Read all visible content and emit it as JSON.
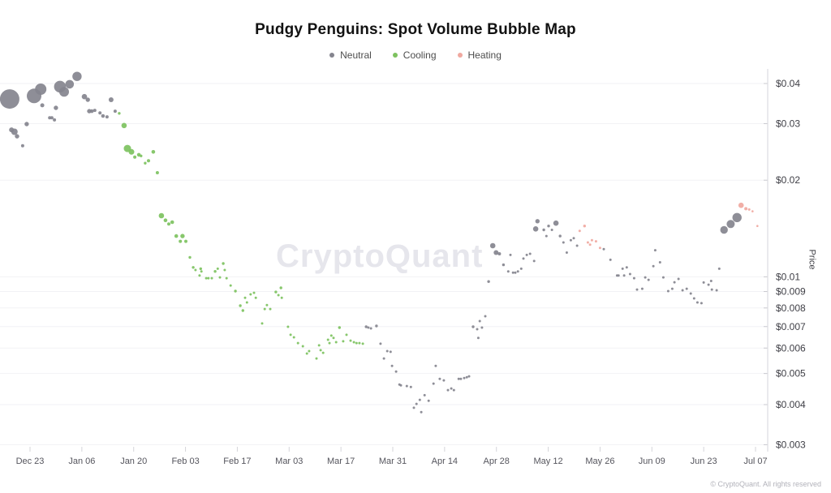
{
  "title": "Pudgy Penguins: Spot Volume Bubble Map",
  "watermark": "CryptoQuant",
  "footer": "© CryptoQuant. All rights reserved",
  "legend": [
    {
      "label": "Neutral",
      "color": "#84848e"
    },
    {
      "label": "Cooling",
      "color": "#7dc25f"
    },
    {
      "label": "Heating",
      "color": "#f0a89f"
    }
  ],
  "y_axis": {
    "label": "Price",
    "scale": "log",
    "ticks": [
      "$0.04",
      "$0.03",
      "$0.02",
      "$0.01",
      "$0.009",
      "$0.008",
      "$0.007",
      "$0.006",
      "$0.005",
      "$0.004",
      "$0.003"
    ],
    "tick_values": [
      0.04,
      0.03,
      0.02,
      0.01,
      0.009,
      0.008,
      0.007,
      0.006,
      0.005,
      0.004,
      0.003
    ]
  },
  "x_axis": {
    "ticks": [
      "Dec 23",
      "Jan 06",
      "Jan 20",
      "Feb 03",
      "Feb 17",
      "Mar 03",
      "Mar 17",
      "Mar 31",
      "Apr 14",
      "Apr 28",
      "May 12",
      "May 26",
      "Jun 09",
      "Jun 23",
      "Jul 07"
    ],
    "tick_interval_days": 14,
    "start_label": "Dec 23"
  },
  "chart_data": {
    "type": "scatter",
    "subtype": "bubble",
    "title": "Pudgy Penguins: Spot Volume Bubble Map",
    "xlabel": "",
    "ylabel": "Price",
    "y_scale": "log",
    "ylim": [
      0.003,
      0.045
    ],
    "x_unit": "days since Dec 23",
    "x_range_days": [
      -8,
      199
    ],
    "point_format": [
      "day_offset",
      "price_usd",
      "bubble_radius"
    ],
    "series": [
      {
        "name": "Neutral",
        "color": "#84848e",
        "points": [
          [
            -5.5,
            0.0358,
            12
          ],
          [
            -5.0,
            0.0287,
            3
          ],
          [
            -4.2,
            0.0283,
            4
          ],
          [
            -3.5,
            0.0274,
            2.7
          ],
          [
            -2.0,
            0.0256,
            2
          ],
          [
            -0.9,
            0.0299,
            2.7
          ],
          [
            1.1,
            0.0366,
            9
          ],
          [
            2.9,
            0.0384,
            7
          ],
          [
            3.3,
            0.0342,
            2.5
          ],
          [
            5.3,
            0.0313,
            2
          ],
          [
            5.9,
            0.0313,
            2
          ],
          [
            6.6,
            0.0308,
            2
          ],
          [
            7.0,
            0.0336,
            2.7
          ],
          [
            8.1,
            0.0391,
            7.3
          ],
          [
            9.2,
            0.0377,
            6
          ],
          [
            10.7,
            0.0398,
            5.3
          ],
          [
            12.7,
            0.0421,
            5.7
          ],
          [
            14.7,
            0.0364,
            3.3
          ],
          [
            15.6,
            0.0356,
            2.7
          ],
          [
            16.0,
            0.0328,
            2.7
          ],
          [
            16.7,
            0.0328,
            2.3
          ],
          [
            17.5,
            0.033,
            2
          ],
          [
            18.9,
            0.0324,
            2
          ],
          [
            19.7,
            0.0317,
            2.3
          ],
          [
            20.8,
            0.0315,
            2
          ],
          [
            21.9,
            0.0356,
            3
          ],
          [
            23.0,
            0.0328,
            2
          ],
          [
            90.8,
            0.00699,
            1.7
          ],
          [
            91.4,
            0.00695,
            1.5
          ],
          [
            92.1,
            0.00691,
            1.5
          ],
          [
            93.6,
            0.00703,
            1.7
          ],
          [
            94.7,
            0.00619,
            1.5
          ],
          [
            95.6,
            0.00557,
            1.5
          ],
          [
            96.5,
            0.00587,
            1.5
          ],
          [
            97.4,
            0.00584,
            1.5
          ],
          [
            97.8,
            0.00528,
            1.5
          ],
          [
            98.9,
            0.00507,
            1.5
          ],
          [
            99.8,
            0.00462,
            1.5
          ],
          [
            100.2,
            0.00459,
            1.5
          ],
          [
            101.8,
            0.00457,
            1.5
          ],
          [
            102.9,
            0.00454,
            1.5
          ],
          [
            103.7,
            0.00391,
            1.5
          ],
          [
            104.4,
            0.00402,
            1.5
          ],
          [
            105.3,
            0.00414,
            1.5
          ],
          [
            105.7,
            0.00379,
            1.5
          ],
          [
            106.6,
            0.00428,
            1.5
          ],
          [
            107.7,
            0.00411,
            1.5
          ],
          [
            109.0,
            0.00465,
            1.5
          ],
          [
            109.6,
            0.00528,
            1.5
          ],
          [
            110.7,
            0.00481,
            1.5
          ],
          [
            111.8,
            0.00476,
            1.5
          ],
          [
            112.9,
            0.00444,
            1.5
          ],
          [
            113.8,
            0.00449,
            1.5
          ],
          [
            114.5,
            0.00444,
            1.5
          ],
          [
            115.8,
            0.00481,
            1.5
          ],
          [
            116.4,
            0.00481,
            1.5
          ],
          [
            117.3,
            0.00484,
            1.5
          ],
          [
            118.0,
            0.00487,
            1.5
          ],
          [
            118.6,
            0.0049,
            1.5
          ],
          [
            119.7,
            0.00699,
            1.7
          ],
          [
            120.8,
            0.00687,
            1.5
          ],
          [
            121.1,
            0.00645,
            1.5
          ],
          [
            121.5,
            0.00728,
            1.5
          ],
          [
            122.1,
            0.00695,
            1.5
          ],
          [
            123.0,
            0.00754,
            1.5
          ],
          [
            123.9,
            0.00967,
            1.7
          ],
          [
            125.0,
            0.0125,
            3.3
          ],
          [
            125.9,
            0.0119,
            3
          ],
          [
            126.8,
            0.0118,
            2
          ],
          [
            127.9,
            0.0109,
            1.7
          ],
          [
            129.2,
            0.0104,
            1.5
          ],
          [
            129.8,
            0.0117,
            1.5
          ],
          [
            130.5,
            0.0103,
            1.5
          ],
          [
            131.1,
            0.0103,
            1.5
          ],
          [
            131.8,
            0.0104,
            1.5
          ],
          [
            132.7,
            0.0106,
            1.5
          ],
          [
            133.3,
            0.0114,
            1.5
          ],
          [
            134.2,
            0.0117,
            1.5
          ],
          [
            135.1,
            0.0118,
            1.5
          ],
          [
            136.2,
            0.0112,
            1.5
          ],
          [
            136.6,
            0.0141,
            3.3
          ],
          [
            137.1,
            0.0149,
            2.7
          ],
          [
            138.8,
            0.014,
            1.7
          ],
          [
            139.5,
            0.0134,
            1.5
          ],
          [
            140.1,
            0.0144,
            1.7
          ],
          [
            141.0,
            0.014,
            1.5
          ],
          [
            142.1,
            0.0147,
            3.3
          ],
          [
            143.2,
            0.0134,
            1.7
          ],
          [
            144.1,
            0.0128,
            1.5
          ],
          [
            145.0,
            0.0119,
            1.5
          ],
          [
            146.1,
            0.013,
            1.5
          ],
          [
            146.9,
            0.0132,
            1.5
          ],
          [
            147.8,
            0.0125,
            1.5
          ],
          [
            155.0,
            0.0122,
            1.5
          ],
          [
            156.8,
            0.0113,
            1.5
          ],
          [
            158.6,
            0.0101,
            1.5
          ],
          [
            159.0,
            0.0101,
            1.5
          ],
          [
            160.1,
            0.0106,
            1.5
          ],
          [
            160.5,
            0.0101,
            1.5
          ],
          [
            161.2,
            0.0107,
            1.5
          ],
          [
            162.1,
            0.0102,
            1.5
          ],
          [
            163.2,
            0.0099,
            1.5
          ],
          [
            164.0,
            0.00913,
            1.5
          ],
          [
            165.4,
            0.00918,
            1.5
          ],
          [
            166.2,
            0.00996,
            1.5
          ],
          [
            167.1,
            0.00979,
            1.5
          ],
          [
            168.4,
            0.0108,
            1.5
          ],
          [
            168.9,
            0.0121,
            1.5
          ],
          [
            170.2,
            0.0111,
            1.5
          ],
          [
            171.1,
            0.00996,
            1.5
          ],
          [
            172.4,
            0.00903,
            1.5
          ],
          [
            173.5,
            0.00918,
            1.5
          ],
          [
            174.1,
            0.00962,
            1.5
          ],
          [
            175.2,
            0.00985,
            1.5
          ],
          [
            176.3,
            0.00908,
            1.5
          ],
          [
            177.4,
            0.00918,
            1.5
          ],
          [
            178.5,
            0.00887,
            1.5
          ],
          [
            179.4,
            0.00857,
            1.5
          ],
          [
            180.3,
            0.00832,
            1.5
          ],
          [
            181.4,
            0.00828,
            1.5
          ],
          [
            182.0,
            0.0096,
            1.5
          ],
          [
            183.3,
            0.00945,
            1.5
          ],
          [
            184.0,
            0.00971,
            1.5
          ],
          [
            184.2,
            0.00913,
            1.5
          ],
          [
            185.5,
            0.00908,
            1.5
          ],
          [
            186.2,
            0.0106,
            1.5
          ],
          [
            187.5,
            0.014,
            4.7
          ],
          [
            189.3,
            0.0146,
            5
          ],
          [
            191.0,
            0.0153,
            5.7
          ]
        ]
      },
      {
        "name": "Cooling",
        "color": "#7dc25f",
        "points": [
          [
            24.1,
            0.0323,
            1.7
          ],
          [
            25.4,
            0.0296,
            3.3
          ],
          [
            26.3,
            0.0251,
            4.5
          ],
          [
            27.4,
            0.0245,
            3.5
          ],
          [
            28.3,
            0.0236,
            2
          ],
          [
            29.4,
            0.024,
            2.3
          ],
          [
            30.0,
            0.0238,
            1.7
          ],
          [
            31.1,
            0.0226,
            1.7
          ],
          [
            32.0,
            0.023,
            2
          ],
          [
            33.3,
            0.0245,
            2.3
          ],
          [
            34.4,
            0.0211,
            2
          ],
          [
            35.5,
            0.0155,
            3.3
          ],
          [
            36.6,
            0.015,
            2.3
          ],
          [
            37.5,
            0.0146,
            2
          ],
          [
            38.4,
            0.0148,
            2.3
          ],
          [
            39.5,
            0.0134,
            2.3
          ],
          [
            40.6,
            0.0129,
            2
          ],
          [
            41.2,
            0.0134,
            2.7
          ],
          [
            42.1,
            0.0129,
            2
          ],
          [
            43.2,
            0.0115,
            1.7
          ],
          [
            44.1,
            0.0107,
            1.7
          ],
          [
            44.7,
            0.0105,
            1.5
          ],
          [
            45.8,
            0.0101,
            1.5
          ],
          [
            46.1,
            0.0106,
            1.7
          ],
          [
            46.3,
            0.0104,
            1.5
          ],
          [
            47.6,
            0.0099,
            1.5
          ],
          [
            48.2,
            0.0099,
            1.5
          ],
          [
            49.1,
            0.0099,
            1.5
          ],
          [
            50.0,
            0.0104,
            1.7
          ],
          [
            50.7,
            0.0106,
            1.5
          ],
          [
            51.3,
            0.00996,
            1.5
          ],
          [
            52.2,
            0.011,
            1.7
          ],
          [
            52.6,
            0.0105,
            1.5
          ],
          [
            53.1,
            0.0099,
            1.5
          ],
          [
            54.2,
            0.0094,
            1.5
          ],
          [
            55.5,
            0.00903,
            1.7
          ],
          [
            56.8,
            0.00813,
            1.7
          ],
          [
            57.5,
            0.00785,
            1.7
          ],
          [
            58.1,
            0.00861,
            1.5
          ],
          [
            58.6,
            0.00832,
            1.5
          ],
          [
            59.6,
            0.00882,
            1.5
          ],
          [
            60.5,
            0.00892,
            1.5
          ],
          [
            61.0,
            0.00861,
            1.5
          ],
          [
            62.7,
            0.00716,
            1.5
          ],
          [
            63.4,
            0.00794,
            1.5
          ],
          [
            64.0,
            0.00817,
            1.5
          ],
          [
            64.9,
            0.00794,
            1.5
          ],
          [
            66.4,
            0.00897,
            1.7
          ],
          [
            67.1,
            0.00877,
            1.5
          ],
          [
            67.8,
            0.00924,
            1.7
          ],
          [
            68.0,
            0.00861,
            1.5
          ],
          [
            69.7,
            0.00699,
            1.5
          ],
          [
            70.4,
            0.0066,
            1.5
          ],
          [
            71.3,
            0.00648,
            1.5
          ],
          [
            72.4,
            0.00622,
            1.5
          ],
          [
            73.7,
            0.00608,
            1.5
          ],
          [
            74.8,
            0.00577,
            1.5
          ],
          [
            75.4,
            0.00587,
            1.5
          ],
          [
            77.4,
            0.00557,
            1.5
          ],
          [
            78.1,
            0.00612,
            1.5
          ],
          [
            78.5,
            0.00591,
            1.5
          ],
          [
            79.2,
            0.0058,
            1.5
          ],
          [
            80.5,
            0.00637,
            1.5
          ],
          [
            80.9,
            0.00622,
            1.5
          ],
          [
            81.4,
            0.00656,
            1.5
          ],
          [
            82.0,
            0.00645,
            1.5
          ],
          [
            82.7,
            0.00626,
            1.5
          ],
          [
            83.6,
            0.00695,
            1.7
          ],
          [
            84.6,
            0.0063,
            1.5
          ],
          [
            85.5,
            0.0066,
            1.5
          ],
          [
            86.6,
            0.00633,
            1.5
          ],
          [
            87.5,
            0.00626,
            1.5
          ],
          [
            88.2,
            0.00622,
            1.5
          ],
          [
            89.0,
            0.00622,
            1.5
          ],
          [
            89.9,
            0.00619,
            1.5
          ]
        ]
      },
      {
        "name": "Heating",
        "color": "#f0a89f",
        "points": [
          [
            148.5,
            0.0139,
            1.5
          ],
          [
            149.8,
            0.0144,
            1.7
          ],
          [
            150.7,
            0.0128,
            1.5
          ],
          [
            151.3,
            0.0126,
            1.5
          ],
          [
            151.8,
            0.013,
            1.5
          ],
          [
            152.9,
            0.0129,
            1.5
          ],
          [
            154.0,
            0.0123,
            1.5
          ],
          [
            192.1,
            0.0167,
            3.3
          ],
          [
            193.4,
            0.0163,
            2
          ],
          [
            194.3,
            0.0162,
            1.5
          ],
          [
            195.2,
            0.016,
            1.3
          ],
          [
            196.5,
            0.0144,
            1.3
          ]
        ]
      }
    ]
  }
}
